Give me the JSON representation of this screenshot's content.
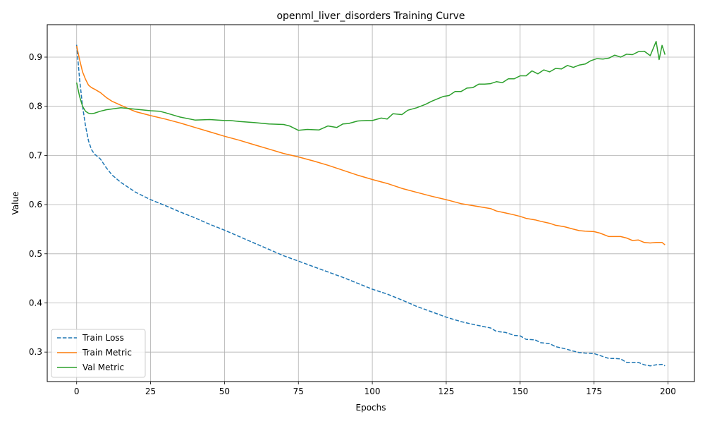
{
  "chart_data": {
    "type": "line",
    "title": "openml_liver_disorders Training Curve",
    "xlabel": "Epochs",
    "ylabel": "Value",
    "xlim": [
      -9.95,
      208.95
    ],
    "ylim": [
      0.24,
      0.966
    ],
    "xticks": [
      0,
      25,
      50,
      75,
      100,
      125,
      150,
      175,
      200
    ],
    "yticks": [
      0.3,
      0.4,
      0.5,
      0.6,
      0.7,
      0.8,
      0.9
    ],
    "grid": true,
    "legend_position": "lower-left",
    "series": [
      {
        "name": "Train Loss",
        "color": "#1f77b4",
        "dash": "dashed",
        "x": [
          0,
          1,
          2,
          3,
          4,
          5,
          6,
          8,
          10,
          12,
          15,
          20,
          25,
          30,
          35,
          40,
          45,
          50,
          55,
          60,
          65,
          70,
          75,
          80,
          85,
          90,
          95,
          100,
          105,
          110,
          115,
          120,
          125,
          130,
          135,
          140,
          142,
          145,
          148,
          150,
          152,
          155,
          157,
          160,
          162,
          165,
          168,
          170,
          172,
          175,
          177,
          180,
          182,
          184,
          186,
          188,
          190,
          192,
          194,
          196,
          198,
          199
        ],
        "values": [
          0.925,
          0.855,
          0.8,
          0.76,
          0.73,
          0.712,
          0.703,
          0.693,
          0.675,
          0.66,
          0.645,
          0.625,
          0.61,
          0.598,
          0.585,
          0.573,
          0.56,
          0.548,
          0.535,
          0.522,
          0.509,
          0.496,
          0.485,
          0.474,
          0.463,
          0.452,
          0.44,
          0.428,
          0.418,
          0.406,
          0.393,
          0.382,
          0.371,
          0.362,
          0.355,
          0.349,
          0.342,
          0.34,
          0.334,
          0.333,
          0.326,
          0.325,
          0.319,
          0.317,
          0.311,
          0.307,
          0.302,
          0.299,
          0.298,
          0.297,
          0.293,
          0.287,
          0.287,
          0.286,
          0.279,
          0.279,
          0.279,
          0.274,
          0.272,
          0.274,
          0.275,
          0.272
        ]
      },
      {
        "name": "Train Metric",
        "color": "#ff7f0e",
        "dash": "solid",
        "x": [
          0,
          1,
          2,
          3,
          4,
          5,
          6,
          8,
          10,
          12,
          15,
          18,
          20,
          25,
          30,
          35,
          40,
          45,
          50,
          55,
          60,
          65,
          70,
          75,
          80,
          85,
          90,
          95,
          100,
          105,
          110,
          115,
          120,
          125,
          130,
          135,
          140,
          142,
          145,
          148,
          150,
          152,
          155,
          157,
          160,
          162,
          165,
          168,
          170,
          172,
          175,
          177,
          180,
          182,
          184,
          186,
          188,
          190,
          192,
          194,
          196,
          198,
          199
        ],
        "values": [
          0.923,
          0.895,
          0.87,
          0.855,
          0.843,
          0.838,
          0.835,
          0.828,
          0.818,
          0.81,
          0.802,
          0.794,
          0.789,
          0.781,
          0.774,
          0.766,
          0.757,
          0.748,
          0.739,
          0.731,
          0.722,
          0.713,
          0.704,
          0.697,
          0.689,
          0.68,
          0.67,
          0.66,
          0.651,
          0.643,
          0.633,
          0.625,
          0.617,
          0.61,
          0.602,
          0.597,
          0.592,
          0.587,
          0.583,
          0.579,
          0.576,
          0.572,
          0.569,
          0.566,
          0.562,
          0.558,
          0.555,
          0.55,
          0.547,
          0.546,
          0.545,
          0.542,
          0.535,
          0.535,
          0.535,
          0.532,
          0.527,
          0.528,
          0.523,
          0.522,
          0.523,
          0.523,
          0.518
        ]
      },
      {
        "name": "Val Metric",
        "color": "#2ca02c",
        "dash": "solid",
        "x": [
          0,
          1,
          2,
          3,
          4,
          5,
          6,
          8,
          10,
          15,
          20,
          25,
          28,
          30,
          35,
          40,
          45,
          50,
          52,
          55,
          60,
          65,
          70,
          72,
          75,
          78,
          82,
          85,
          88,
          90,
          92,
          95,
          98,
          100,
          103,
          105,
          107,
          110,
          112,
          115,
          118,
          120,
          122,
          124,
          126,
          128,
          130,
          132,
          134,
          136,
          138,
          140,
          142,
          144,
          146,
          148,
          150,
          152,
          154,
          156,
          158,
          160,
          162,
          164,
          166,
          168,
          170,
          172,
          174,
          176,
          178,
          180,
          182,
          184,
          186,
          188,
          190,
          192,
          194,
          196,
          197,
          198,
          199
        ],
        "values": [
          0.848,
          0.82,
          0.8,
          0.79,
          0.786,
          0.785,
          0.786,
          0.79,
          0.793,
          0.797,
          0.794,
          0.791,
          0.79,
          0.787,
          0.778,
          0.772,
          0.773,
          0.771,
          0.771,
          0.769,
          0.767,
          0.764,
          0.763,
          0.76,
          0.751,
          0.753,
          0.752,
          0.76,
          0.757,
          0.764,
          0.765,
          0.77,
          0.771,
          0.771,
          0.776,
          0.774,
          0.785,
          0.783,
          0.792,
          0.797,
          0.804,
          0.81,
          0.815,
          0.82,
          0.822,
          0.83,
          0.83,
          0.837,
          0.838,
          0.845,
          0.845,
          0.846,
          0.85,
          0.848,
          0.856,
          0.856,
          0.862,
          0.862,
          0.872,
          0.866,
          0.874,
          0.87,
          0.877,
          0.876,
          0.883,
          0.879,
          0.884,
          0.886,
          0.893,
          0.897,
          0.896,
          0.898,
          0.904,
          0.9,
          0.906,
          0.905,
          0.911,
          0.912,
          0.903,
          0.932,
          0.895,
          0.924,
          0.905
        ]
      }
    ]
  }
}
